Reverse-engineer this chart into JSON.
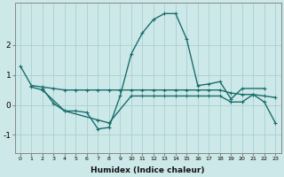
{
  "xlabel": "Humidex (Indice chaleur)",
  "xlim": [
    -0.5,
    23.5
  ],
  "ylim": [
    -1.6,
    3.4
  ],
  "yticks": [
    -1,
    0,
    1,
    2
  ],
  "xticks": [
    0,
    1,
    2,
    3,
    4,
    5,
    6,
    7,
    8,
    9,
    10,
    11,
    12,
    13,
    14,
    15,
    16,
    17,
    18,
    19,
    20,
    21,
    22,
    23
  ],
  "bg_color": "#cde8e8",
  "grid_color": "#aacfcf",
  "line_color": "#1a6e6e",
  "series1_x": [
    0,
    1,
    2,
    3,
    4,
    5,
    6,
    7,
    8,
    9,
    10,
    11,
    12,
    13,
    14,
    15,
    16,
    17,
    18,
    19,
    20,
    21,
    22,
    23
  ],
  "series1_y": [
    1.3,
    0.65,
    0.6,
    0.55,
    0.5,
    0.5,
    0.5,
    0.5,
    0.5,
    0.5,
    0.5,
    0.5,
    0.5,
    0.5,
    0.5,
    0.5,
    0.5,
    0.5,
    0.5,
    0.4,
    0.35,
    0.35,
    0.3,
    0.25
  ],
  "series2_x": [
    2,
    3,
    4,
    5,
    6,
    7,
    8,
    9,
    10,
    11,
    12,
    13,
    14,
    15,
    16,
    17,
    18,
    19,
    20,
    22
  ],
  "series2_y": [
    0.55,
    0.05,
    -0.2,
    -0.2,
    -0.25,
    -0.8,
    -0.75,
    0.3,
    1.7,
    2.4,
    2.85,
    3.05,
    3.05,
    2.2,
    0.65,
    0.7,
    0.78,
    0.2,
    0.55,
    0.55
  ],
  "series3_x": [
    1,
    2,
    4,
    7,
    8,
    10,
    11,
    12,
    13,
    14,
    15,
    16,
    17,
    18,
    19,
    20,
    21,
    22,
    23
  ],
  "series3_y": [
    0.6,
    0.5,
    -0.2,
    -0.5,
    -0.6,
    0.3,
    0.3,
    0.3,
    0.3,
    0.3,
    0.3,
    0.3,
    0.3,
    0.3,
    0.1,
    0.1,
    0.35,
    0.1,
    -0.6
  ],
  "linewidth": 1.0,
  "markersize": 3,
  "marker": "+"
}
